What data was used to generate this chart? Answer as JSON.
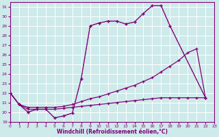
{
  "xlabel": "Windchill (Refroidissement éolien,°C)",
  "xlim": [
    0,
    23
  ],
  "ylim": [
    19,
    31.5
  ],
  "yticks": [
    19,
    20,
    21,
    22,
    23,
    24,
    25,
    26,
    27,
    28,
    29,
    30,
    31
  ],
  "xticks": [
    0,
    1,
    2,
    3,
    4,
    5,
    6,
    7,
    8,
    9,
    10,
    11,
    12,
    13,
    14,
    15,
    16,
    17,
    18,
    19,
    20,
    21,
    22,
    23
  ],
  "bg_color": "#ceeaea",
  "line_color": "#800078",
  "grid_color": "#b8d8d8",
  "line1_x": [
    0,
    1,
    2,
    3,
    4,
    5,
    6,
    7,
    8,
    9,
    10,
    11,
    12,
    13,
    14,
    15,
    16,
    17,
    18,
    22
  ],
  "line1_y": [
    22.0,
    20.8,
    20.0,
    20.3,
    20.3,
    19.4,
    19.6,
    19.9,
    23.5,
    29.0,
    29.3,
    29.5,
    29.5,
    29.2,
    29.4,
    30.3,
    31.1,
    31.1,
    29.0,
    21.5
  ],
  "line2_x": [
    0,
    1,
    2,
    3,
    4,
    5,
    6,
    7,
    8,
    9,
    10,
    11,
    12,
    13,
    14,
    15,
    16,
    17,
    18,
    22
  ],
  "line2_y": [
    22.0,
    20.8,
    20.0,
    20.3,
    20.3,
    19.4,
    19.6,
    19.9,
    23.5,
    29.0,
    29.3,
    29.5,
    29.5,
    29.2,
    29.4,
    30.3,
    31.1,
    31.1,
    29.0,
    21.5
  ],
  "line3_x": [
    0,
    1,
    2,
    3,
    4,
    5,
    6,
    7,
    8,
    9,
    10,
    11,
    12,
    13,
    14,
    15,
    16,
    17,
    18,
    19,
    20,
    21,
    22
  ],
  "line3_y": [
    22.0,
    20.8,
    20.5,
    20.5,
    20.5,
    20.5,
    20.6,
    20.8,
    21.1,
    21.4,
    21.6,
    21.9,
    22.2,
    22.5,
    22.8,
    23.2,
    23.6,
    24.2,
    24.8,
    25.4,
    26.2,
    26.6,
    21.5
  ],
  "line4_x": [
    0,
    1,
    2,
    3,
    4,
    5,
    6,
    7,
    8,
    9,
    10,
    11,
    12,
    13,
    14,
    15,
    16,
    17,
    18,
    19,
    20,
    21,
    22
  ],
  "line4_y": [
    22.0,
    20.8,
    20.3,
    20.3,
    20.3,
    20.3,
    20.4,
    20.5,
    20.6,
    20.7,
    20.8,
    20.9,
    21.0,
    21.1,
    21.2,
    21.3,
    21.4,
    21.5,
    21.5,
    21.5,
    21.5,
    21.5,
    21.5
  ]
}
